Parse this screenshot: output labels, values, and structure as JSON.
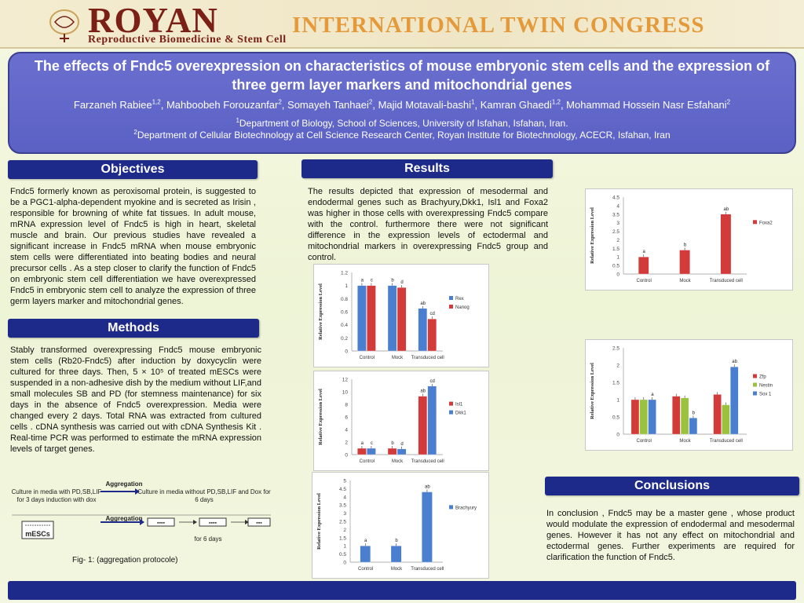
{
  "banner": {
    "royan": "ROYAN",
    "congress": "INTERNATIONAL TWIN CONGRESS",
    "subtitle": "Reproductive Biomedicine & Stem Cell"
  },
  "title": "The effects of Fndc5 overexpression on characteristics of  mouse embryonic stem cells and the expression of  three germ layer markers and mitochondrial genes",
  "authors": [
    {
      "name": "Farzaneh Rabiee",
      "aff": "1,2"
    },
    {
      "name": "Mahboobeh Forouzanfar",
      "aff": "2"
    },
    {
      "name": "Somayeh Tanhaei",
      "aff": "2"
    },
    {
      "name": "Majid Motavali-bashi",
      "aff": "1"
    },
    {
      "name": "Kamran Ghaedi",
      "aff": "1,2"
    },
    {
      "name": "Mohammad Hossein Nasr Esfahani",
      "aff": "2"
    }
  ],
  "affiliations": [
    {
      "num": "1",
      "text": "Department of Biology, School of Sciences, University of Isfahan, Isfahan, Iran."
    },
    {
      "num": "2",
      "text": "Department of Cellular Biotechnology at Cell Science Research Center, Royan Institute for Biotechnology, ACECR, Isfahan, Iran"
    }
  ],
  "sections": {
    "objectives": {
      "title": "Objectives",
      "text": "Fndc5 formerly known as peroxisomal protein, is suggested to be a PGC1-alpha-dependent myokine and is secreted as Irisin , responsible for  browning of white fat tissues. In adult mouse, mRNA expression level of Fndc5 is high in heart, skeletal muscle and brain. Our previous studies have revealed a significant increase in Fndc5 mRNA when mouse embryonic stem cells were differentiated into beating bodies and neural precursor cells .  As a step closer to clarify the function of Fndc5 on  embryonic stem cell differentiation we have overexpressed Fndc5   in embryonic stem cell to analyze the expression of three germ layers marker and mitochondrial genes."
    },
    "methods": {
      "title": "Methods",
      "text": "Stably transformed overexpressing Fndc5 mouse embryonic stem cells (Rb20-Fndc5) after induction by doxycyclin  were cultured for three days. Then, 5 × 10⁵ of treated mESCs were suspended in a non-adhesive dish by the medium without LIF,and small molecules SB and PD (for stemness maintenance) for six days in the absence of  Fndc5 overexpression. Media were changed every 2 days. Total RNA was extracted from cultured cells . cDNA synthesis was carried out with cDNA Synthesis Kit . Real-time PCR was performed to estimate the mRNA expression levels of target genes."
    },
    "results": {
      "title": "Results",
      "text": "The results depicted that expression of mesodermal and endodermal genes such as Brachyury,Dkk1, Isl1 and Foxa2 was higher in those cells with overexpressing Fndc5 compare with the control. furthermore there were not significant difference in the expression levels of ectodermal and mitochondrial markers in overexpressing Fndc5 group and control."
    },
    "conclusions": {
      "title": "Conclusions",
      "text": "In conclusion , Fndc5 may be a master gene , whose product would modulate the expression of endodermal and mesodermal genes. However it has not any effect on mitochondrial and ectodermal genes. Further experiments are required for clarification the function of Fndc5."
    }
  },
  "figure1": {
    "step1": "Culture in media with PD,SB,LIF for 3 days induction with dox",
    "aggregation_label": "Aggregation",
    "step2": "Culture in media without PD,SB,LIF and Dox for 6 days",
    "mescs": "mESCs",
    "duration": "for 6 days",
    "caption": "Fig- 1: (aggregation protocole)"
  },
  "chart_data": [
    {
      "type": "bar",
      "categories": [
        "Control",
        "Mock",
        "Transduced cell"
      ],
      "ylabel": "Relative Expression Level",
      "ylim": [
        0,
        1.2
      ],
      "yticks": [
        "0",
        "0.2",
        "0.4",
        "0.6",
        "0.8",
        "1",
        "1.2"
      ],
      "legend_position": "right",
      "series": [
        {
          "name": "Rex",
          "color": "#4a7fd0",
          "values": [
            1,
            1,
            0.65
          ],
          "labels": [
            "a",
            "b",
            "ab"
          ]
        },
        {
          "name": "Nanog",
          "color": "#d33a3a",
          "values": [
            1,
            0.97,
            0.49
          ],
          "labels": [
            "c",
            "d",
            "cd"
          ]
        }
      ]
    },
    {
      "type": "bar",
      "categories": [
        "Control",
        "Mock",
        "Transduced cell"
      ],
      "ylabel": "Relative Expression Level",
      "ylim": [
        0,
        12
      ],
      "yticks": [
        "0",
        "2",
        "4",
        "6",
        "8",
        "10",
        "12"
      ],
      "legend_position": "right",
      "series": [
        {
          "name": "Isl1",
          "color": "#d33a3a",
          "values": [
            1,
            1,
            9.3
          ],
          "labels": [
            "a",
            "b",
            "ab"
          ]
        },
        {
          "name": "Dkk1",
          "color": "#4a7fd0",
          "values": [
            1,
            0.9,
            10.9
          ],
          "labels": [
            "c",
            "d",
            "cd"
          ]
        }
      ]
    },
    {
      "type": "bar",
      "categories": [
        "Control",
        "Mock",
        "Transduced cell"
      ],
      "ylabel": "Relative Expression Level",
      "ylim": [
        0,
        5
      ],
      "yticks": [
        "0",
        "0.5",
        "1",
        "1.5",
        "2",
        "2.5",
        "3",
        "3.5",
        "4",
        "4.5",
        "5"
      ],
      "legend_position": "right",
      "series": [
        {
          "name": "Brachyury",
          "color": "#4a7fd0",
          "values": [
            1,
            1,
            4.3
          ],
          "labels": [
            "a",
            "b",
            "ab"
          ]
        }
      ]
    },
    {
      "type": "bar",
      "categories": [
        "Control",
        "Mock",
        "Transduced cell"
      ],
      "ylabel": "Relative Expression Level",
      "ylim": [
        0,
        4.5
      ],
      "yticks": [
        "0",
        "0.5",
        "1",
        "1.5",
        "2",
        "2.5",
        "3",
        "3.5",
        "4",
        "4.5"
      ],
      "legend_position": "right",
      "series": [
        {
          "name": "Foxa2",
          "color": "#d33a3a",
          "values": [
            1,
            1.4,
            3.5
          ],
          "labels": [
            "a",
            "b",
            "ab"
          ]
        }
      ]
    },
    {
      "type": "bar",
      "categories": [
        "Control",
        "Mock",
        "Transduced cell"
      ],
      "ylabel": "Relative Expression Level",
      "ylim": [
        0,
        2.5
      ],
      "yticks": [
        "0",
        "0.5",
        "1",
        "1.5",
        "2",
        "2.5"
      ],
      "legend_position": "right",
      "series": [
        {
          "name": "Zfp",
          "color": "#d33a3a",
          "values": [
            1,
            1.1,
            1.15
          ],
          "labels": [
            "",
            "",
            ""
          ]
        },
        {
          "name": "Nestin",
          "color": "#9ac23c",
          "values": [
            1,
            1.05,
            0.85
          ],
          "labels": [
            "",
            "",
            ""
          ]
        },
        {
          "name": "Sox 1",
          "color": "#4a7fd0",
          "values": [
            1,
            0.47,
            1.95
          ],
          "labels": [
            "a",
            "b",
            "ab"
          ]
        }
      ]
    }
  ]
}
